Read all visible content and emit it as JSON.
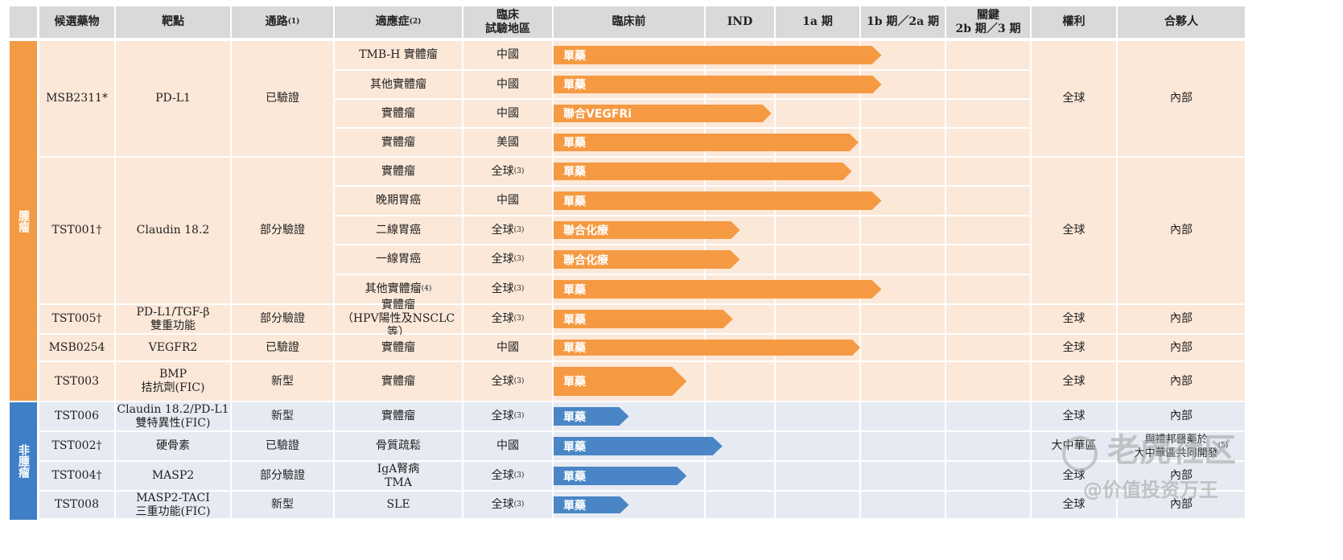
{
  "headers": [
    "候選藥物",
    "靶點",
    "通路⁽¹⁾",
    "適應症⁽²⁾",
    "臨床\n試驗地區",
    "臨床前",
    "IND",
    "1a 期",
    "1b 期／2a 期",
    "關鍵\n2b 期／3 期",
    "權利",
    "合夥人"
  ],
  "categories": {
    "oncology": "腫瘤",
    "non_oncology": "非腫瘤"
  },
  "colors": {
    "oncology_bar": "#f59a43",
    "oncology_band": "#f39a44",
    "non_oncology_bar": "#4a86c5",
    "non_oncology_band": "#3f7fc6"
  },
  "stage_scale": {
    "min": 0,
    "max": 5,
    "unit": "stage index (0 = start of 臨床前, 1 = start of IND, 2 = start of 1a 期, 3 = start of 1b 期／2a 期, 4 = start of 關鍵 2b 期／3 期)"
  },
  "candidates": [
    {
      "name": "MSB2311*",
      "target": "PD-L1",
      "pathway": "已驗證",
      "rights": "全球",
      "partner": "內部",
      "indications": [
        {
          "indication": "TMB-H 實體瘤",
          "region": "中國",
          "label": "單藥",
          "progress": 3.25
        },
        {
          "indication": "其他實體瘤",
          "region": "中國",
          "label": "單藥",
          "progress": 3.25
        },
        {
          "indication": "實體瘤",
          "region": "中國",
          "label": "聯合VEGFRi",
          "progress": 1.95
        },
        {
          "indication": "實體瘤",
          "region": "美國",
          "label": "單藥",
          "progress": 2.98
        }
      ]
    },
    {
      "name": "TST001†",
      "target": "Claudin 18.2",
      "pathway": "部分驗證",
      "rights": "全球",
      "partner": "內部",
      "indications": [
        {
          "indication": "實體瘤",
          "region": "全球⁽³⁾",
          "label": "單藥",
          "progress": 2.9
        },
        {
          "indication": "晚期胃癌",
          "region": "中國",
          "label": "單藥",
          "progress": 3.25
        },
        {
          "indication": "二線胃癌",
          "region": "全球⁽³⁾",
          "label": "聯合化療",
          "progress": 1.5
        },
        {
          "indication": "一線胃癌",
          "region": "全球⁽³⁾",
          "label": "聯合化療",
          "progress": 1.5
        },
        {
          "indication": "其他實體瘤⁽⁴⁾",
          "region": "全球⁽³⁾",
          "label": "單藥",
          "progress": 3.25
        }
      ]
    },
    {
      "name": "TST005†",
      "target": "PD-L1/TGF-β\n雙重功能",
      "pathway": "部分驗證",
      "rights": "全球",
      "partner": "內部",
      "indications": [
        {
          "indication": "實體瘤\n（HPV陽性及NSCLC 等）",
          "region": "全球⁽³⁾",
          "label": "單藥",
          "progress": 1.4
        }
      ]
    },
    {
      "name": "MSB0254",
      "target": "VEGFR2",
      "pathway": "已驗證",
      "rights": "全球",
      "partner": "內部",
      "indications": [
        {
          "indication": "實體瘤",
          "region": "中國",
          "label": "單藥",
          "progress": 3.0
        }
      ]
    },
    {
      "name": "TST003",
      "target": "BMP\n拮抗劑(FIC)",
      "pathway": "新型",
      "rights": "全球",
      "partner": "內部",
      "indications": [
        {
          "indication": "實體瘤",
          "region": "全球⁽³⁾",
          "label": "單藥",
          "progress": 0.88
        }
      ]
    },
    {
      "name": "TST006",
      "target": "Claudin 18.2/PD-L1\n雙特異性(FIC)",
      "pathway": "新型",
      "rights": "全球",
      "partner": "內部",
      "indications": [
        {
          "indication": "實體瘤",
          "region": "全球⁽³⁾",
          "label": "單藥",
          "progress": 0.5
        }
      ]
    },
    {
      "name": "TST002†",
      "target": "硬骨素",
      "pathway": "已驗證",
      "rights": "大中華區",
      "partner": "與禮邦醫藥於\n大中華區共同開發⁽⁵⁾",
      "indications": [
        {
          "indication": "骨質疏鬆",
          "region": "中國",
          "label": "單藥",
          "progress": 1.25
        }
      ]
    },
    {
      "name": "TST004†",
      "target": "MASP2",
      "pathway": "部分驗證",
      "rights": "全球",
      "partner": "內部",
      "indications": [
        {
          "indication": "IgA腎病\nTMA",
          "region": "全球⁽³⁾",
          "label": "單藥",
          "progress": 0.88
        }
      ]
    },
    {
      "name": "TST008",
      "target": "MASP2-TACI\n三重功能(FIC)",
      "pathway": "新型",
      "rights": "全球",
      "partner": "內部",
      "indications": [
        {
          "indication": "SLE",
          "region": "全球⁽³⁾",
          "label": "單藥",
          "progress": 0.5
        }
      ]
    }
  ],
  "watermark": {
    "line1": "老虎社区",
    "line2": "@价值投资万王"
  }
}
